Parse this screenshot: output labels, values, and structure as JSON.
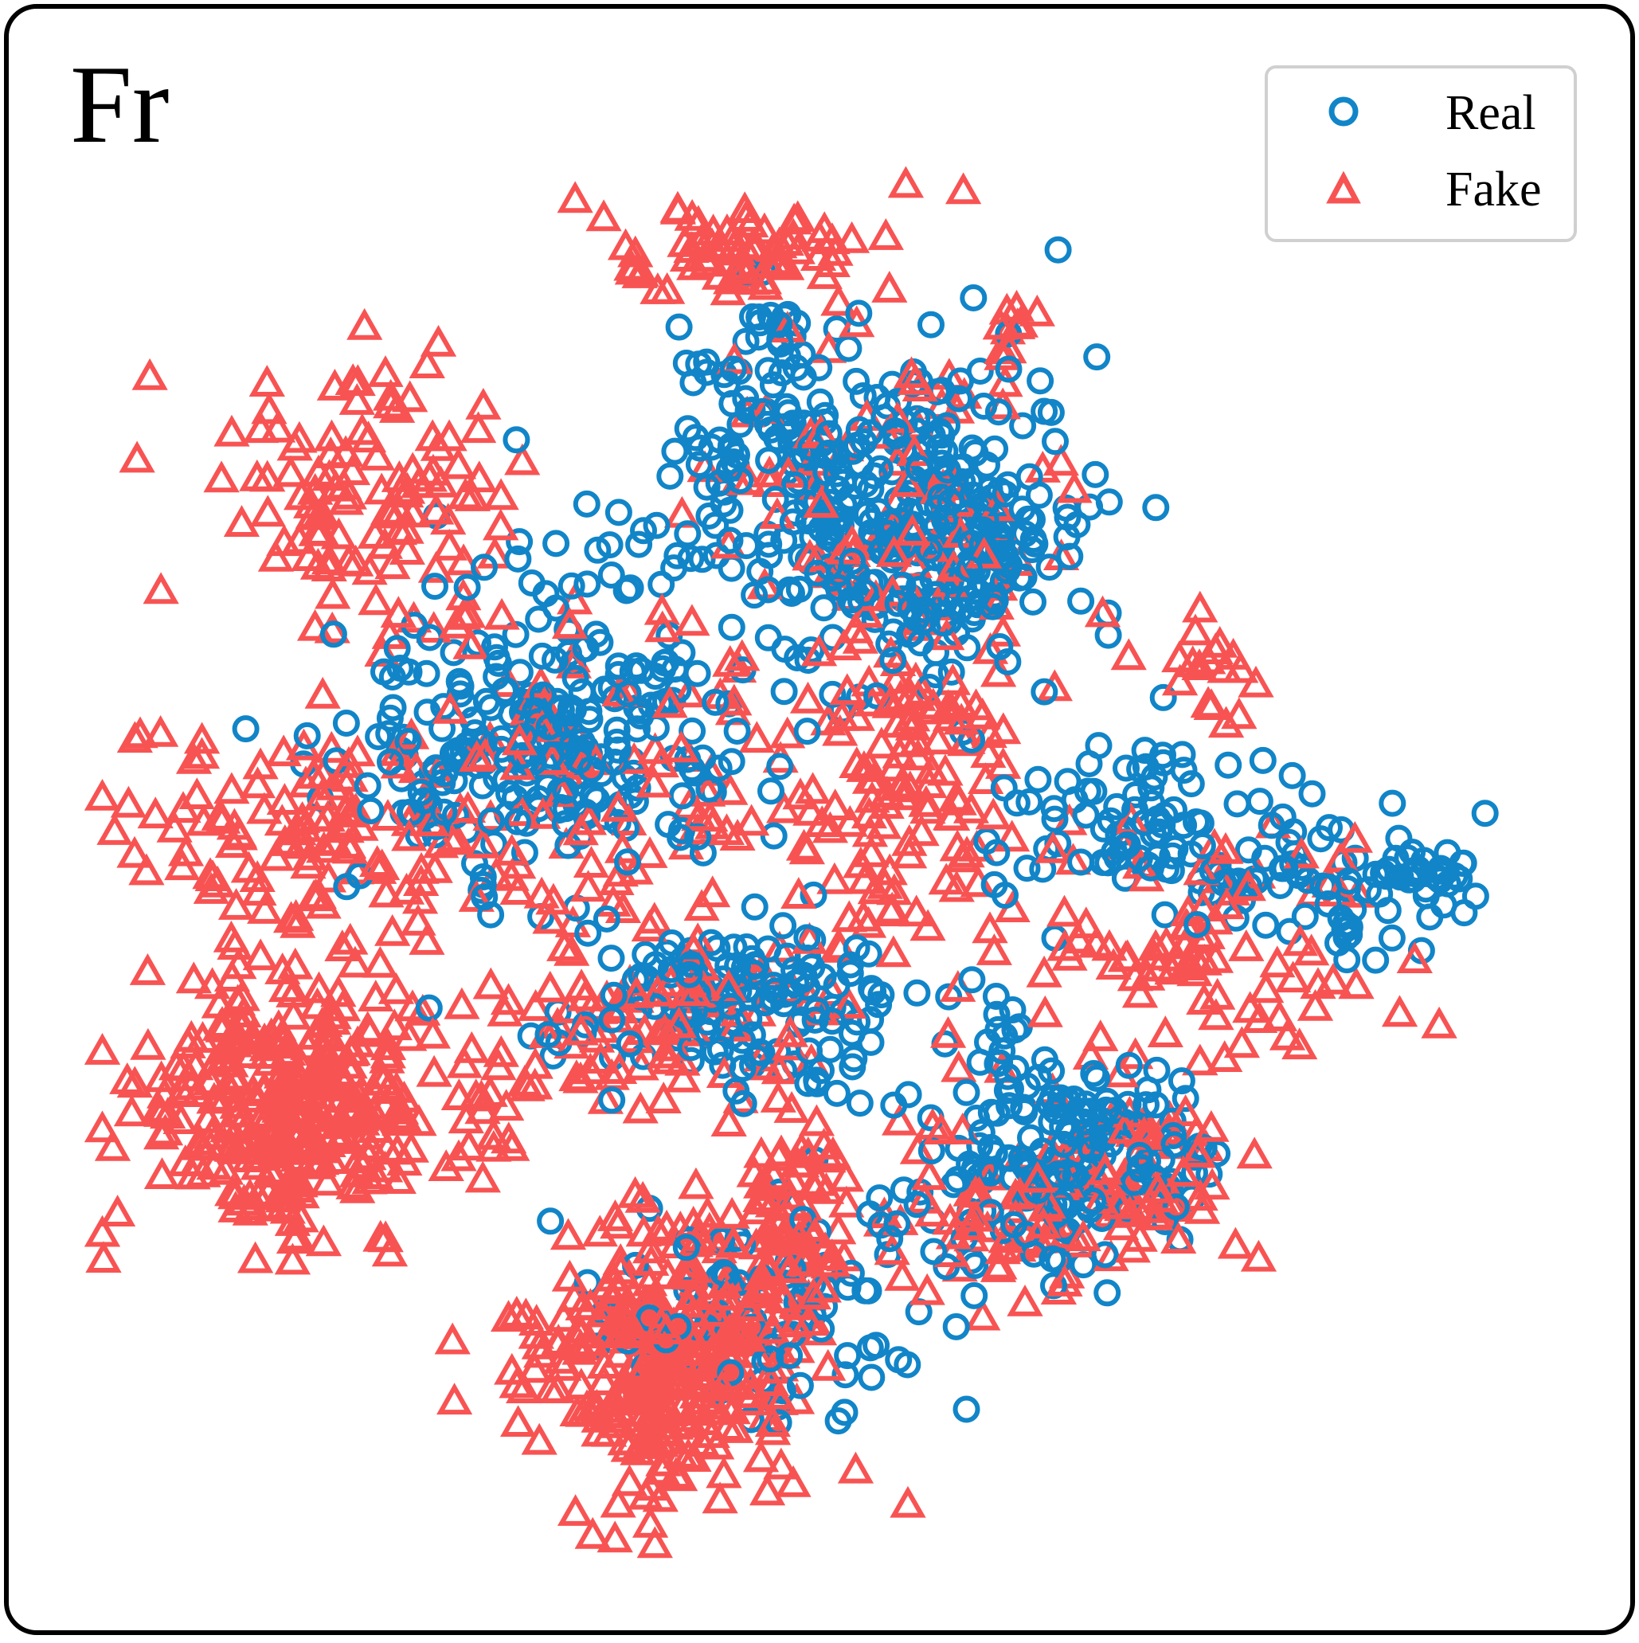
{
  "chart_data": {
    "type": "scatter",
    "title": "Fr",
    "xlabel": "",
    "ylabel": "",
    "grid": false,
    "axes_visible": false,
    "legend_position": "top-right",
    "xlim": [
      0,
      100
    ],
    "ylim": [
      0,
      100
    ],
    "series": [
      {
        "name": "Real",
        "marker": "circle-open",
        "color": "#1185c8",
        "clusters": [
          {
            "x": 54,
            "y": 71,
            "spread": [
              5,
              6
            ],
            "count": 260,
            "seed": 11
          },
          {
            "x": 45,
            "y": 78,
            "spread": [
              2.5,
              4
            ],
            "count": 70,
            "seed": 12
          },
          {
            "x": 59,
            "y": 69,
            "spread": [
              4,
              3.5
            ],
            "count": 90,
            "seed": 13
          },
          {
            "x": 32,
            "y": 56,
            "spread": [
              7,
              4.5
            ],
            "count": 230,
            "seed": 14
          },
          {
            "x": 44,
            "y": 38,
            "spread": [
              6,
              3
            ],
            "count": 150,
            "seed": 15
          },
          {
            "x": 67,
            "y": 27,
            "spread": [
              4.5,
              3.5
            ],
            "count": 170,
            "seed": 16
          },
          {
            "x": 46,
            "y": 17,
            "spread": [
              6,
              5
            ],
            "count": 90,
            "seed": 17
          },
          {
            "x": 71,
            "y": 50,
            "spread": [
              5,
              3
            ],
            "count": 80,
            "seed": 18
          },
          {
            "x": 83,
            "y": 46,
            "spread": [
              5,
              2.5
            ],
            "count": 70,
            "seed": 19
          },
          {
            "x": 91,
            "y": 46.5,
            "spread": [
              1.8,
              1
            ],
            "count": 18,
            "seed": 20
          },
          {
            "x": 36,
            "y": 68,
            "spread": [
              4,
              2
            ],
            "count": 24,
            "seed": 21
          },
          {
            "x": 24,
            "y": 52,
            "spread": [
              3,
              3
            ],
            "count": 30,
            "seed": 22
          },
          {
            "x": 61,
            "y": 35,
            "spread": [
              2,
              3
            ],
            "count": 20,
            "seed": 23
          }
        ],
        "points": [
          [
            92.2,
            46.8
          ],
          [
            91.8,
            46.2
          ],
          [
            92.8,
            46.5
          ],
          [
            93.1,
            46.3
          ],
          [
            29.1,
            76.1
          ],
          [
            16.7,
            62.9
          ],
          [
            56,
            79.9
          ],
          [
            72.5,
            71.5
          ],
          [
            56.3,
            24.2
          ],
          [
            54.3,
            20.8
          ],
          [
            40.7,
            19.1
          ]
        ]
      },
      {
        "name": "Fake",
        "marker": "triangle-open",
        "color": "#f85353",
        "clusters": [
          {
            "x": 14,
            "y": 31,
            "spread": [
              5,
              4.5
            ],
            "count": 320,
            "seed": 31
          },
          {
            "x": 39,
            "y": 13,
            "spread": [
              4.5,
              4
            ],
            "count": 300,
            "seed": 32
          },
          {
            "x": 46,
            "y": 22,
            "spread": [
              4,
              3.5
            ],
            "count": 110,
            "seed": 33
          },
          {
            "x": 44,
            "y": 89,
            "spread": [
              4.5,
              1.8
            ],
            "count": 70,
            "seed": 34
          },
          {
            "x": 19,
            "y": 72,
            "spread": [
              5,
              4.5
            ],
            "count": 110,
            "seed": 35
          },
          {
            "x": 15,
            "y": 49,
            "spread": [
              6,
              4
            ],
            "count": 110,
            "seed": 36
          },
          {
            "x": 65,
            "y": 24,
            "spread": [
              5,
              3
            ],
            "count": 80,
            "seed": 37
          },
          {
            "x": 72,
            "y": 27,
            "spread": [
              3,
              3
            ],
            "count": 50,
            "seed": 38
          },
          {
            "x": 55,
            "y": 52,
            "spread": [
              4,
              6
            ],
            "count": 110,
            "seed": 39
          },
          {
            "x": 74,
            "y": 42,
            "spread": [
              7,
              4
            ],
            "count": 90,
            "seed": 40
          },
          {
            "x": 42,
            "y": 37,
            "spread": [
              5,
              3
            ],
            "count": 60,
            "seed": 41
          },
          {
            "x": 35,
            "y": 52,
            "spread": [
              8,
              6
            ],
            "count": 110,
            "seed": 42
          },
          {
            "x": 55,
            "y": 70,
            "spread": [
              7,
              7
            ],
            "count": 90,
            "seed": 43
          },
          {
            "x": 63,
            "y": 83,
            "spread": [
              1,
              1.2
            ],
            "count": 10,
            "seed": 44
          },
          {
            "x": 76,
            "y": 60,
            "spread": [
              1.5,
              1.2
            ],
            "count": 16,
            "seed": 45
          },
          {
            "x": 35,
            "y": 35,
            "spread": [
              3,
              2.5
            ],
            "count": 24,
            "seed": 46
          },
          {
            "x": 27,
            "y": 32,
            "spread": [
              2,
              3
            ],
            "count": 18,
            "seed": 47
          }
        ],
        "points": [
          [
            75.5,
            64.5
          ],
          [
            56.5,
            79.5
          ],
          [
            59.5,
            79
          ],
          [
            47.5,
            83.5
          ],
          [
            29.5,
            74.5
          ],
          [
            25.5,
            64
          ],
          [
            26,
            62
          ],
          [
            20,
            61.5
          ],
          [
            59,
            78
          ],
          [
            49,
            42
          ],
          [
            69,
            26.5
          ]
        ]
      }
    ]
  }
}
